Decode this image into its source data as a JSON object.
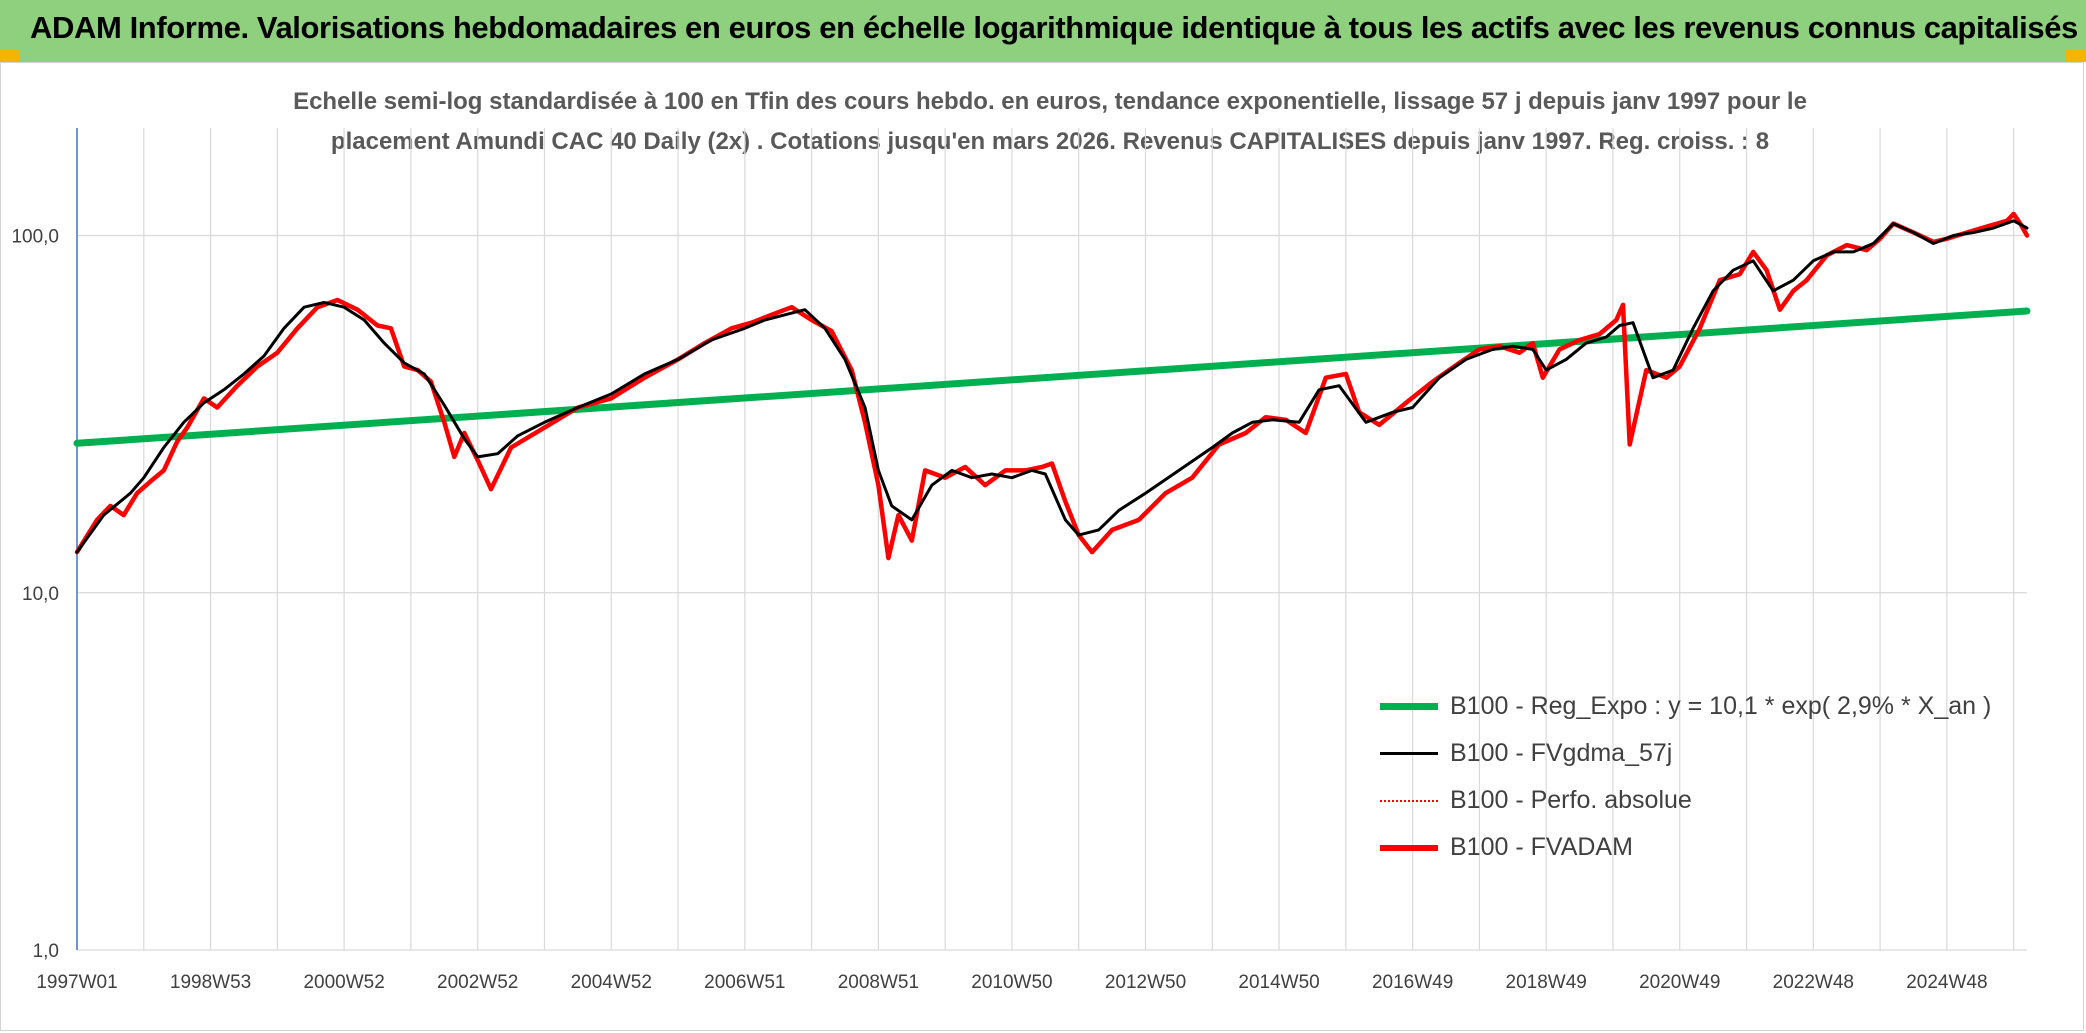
{
  "header": {
    "title": "ADAM Informe. Valorisations hebdomadaires en euros en échelle logarithmique identique à tous les actifs avec les revenus connus capitalisés"
  },
  "colors": {
    "banner": "#8fd07f",
    "regression": "#00b050",
    "moving_average": "#000000",
    "absolute_perf": "#ff0000",
    "fvadam": "#ff0000",
    "grid": "#d9d9d9",
    "accent_corner": "#f5b400"
  },
  "chart_data": {
    "type": "line",
    "title_line1": "Echelle semi-log standardisée à 100 en Tfin des cours hebdo. en euros, tendance exponentielle, lissage 57 j depuis janv 1997 pour le",
    "title_line2": "placement Amundi CAC 40 Daily (2x) . Cotations jusqu'en mars 2026. Revenus CAPITALISES depuis janv 1997. Reg. croiss. : 8",
    "y_scale": "log",
    "ylim": [
      1,
      200
    ],
    "y_ticks": [
      {
        "value": 1,
        "label": "1,0"
      },
      {
        "value": 10,
        "label": "10,0"
      },
      {
        "value": 100,
        "label": "100,0"
      }
    ],
    "x_range": [
      1997.0,
      2026.2
    ],
    "x_ticks": [
      {
        "value": 1997.0,
        "label": "1997W01"
      },
      {
        "value": 1999.0,
        "label": "1998W53"
      },
      {
        "value": 2001.0,
        "label": "2000W52"
      },
      {
        "value": 2003.0,
        "label": "2002W52"
      },
      {
        "value": 2005.0,
        "label": "2004W52"
      },
      {
        "value": 2007.0,
        "label": "2006W51"
      },
      {
        "value": 2009.0,
        "label": "2008W51"
      },
      {
        "value": 2011.0,
        "label": "2010W50"
      },
      {
        "value": 2013.0,
        "label": "2012W50"
      },
      {
        "value": 2015.0,
        "label": "2014W50"
      },
      {
        "value": 2017.0,
        "label": "2016W49"
      },
      {
        "value": 2019.0,
        "label": "2018W49"
      },
      {
        "value": 2021.0,
        "label": "2020W49"
      },
      {
        "value": 2023.0,
        "label": "2022W48"
      },
      {
        "value": 2025.0,
        "label": "2024W48"
      }
    ],
    "grid": true,
    "legend_position": "bottom-right",
    "series": [
      {
        "name": "B100 - Reg_Expo : y = 10,1 * exp( 2,9% *  X_an )",
        "key": "reg",
        "style": "thick",
        "x": [
          1997.0,
          2026.2
        ],
        "y": [
          26.2,
          61.5
        ]
      },
      {
        "name": "B100 - FVgdma_57j",
        "key": "ma",
        "style": "thin",
        "x": [
          1997.0,
          1997.4,
          1997.8,
          1998.0,
          1998.3,
          1998.6,
          1998.9,
          1999.2,
          1999.5,
          1999.8,
          2000.1,
          2000.4,
          2000.7,
          2001.0,
          2001.3,
          2001.6,
          2001.9,
          2002.2,
          2002.5,
          2002.8,
          2003.0,
          2003.3,
          2003.6,
          2004.0,
          2004.5,
          2005.0,
          2005.5,
          2006.0,
          2006.5,
          2007.0,
          2007.3,
          2007.6,
          2007.9,
          2008.2,
          2008.5,
          2008.8,
          2009.0,
          2009.2,
          2009.5,
          2009.8,
          2010.1,
          2010.4,
          2010.7,
          2011.0,
          2011.3,
          2011.5,
          2011.8,
          2012.0,
          2012.3,
          2012.6,
          2013.0,
          2013.5,
          2014.0,
          2014.3,
          2014.6,
          2014.9,
          2015.3,
          2015.6,
          2015.9,
          2016.3,
          2016.7,
          2017.0,
          2017.4,
          2017.8,
          2018.2,
          2018.5,
          2018.8,
          2019.0,
          2019.3,
          2019.6,
          2019.9,
          2020.1,
          2020.3,
          2020.6,
          2020.9,
          2021.2,
          2021.5,
          2021.8,
          2022.1,
          2022.4,
          2022.7,
          2023.0,
          2023.3,
          2023.6,
          2023.9,
          2024.2,
          2024.5,
          2024.8,
          2025.1,
          2025.4,
          2025.7,
          2026.0,
          2026.2
        ],
        "y": [
          13.0,
          16.5,
          19.0,
          21.0,
          25.5,
          30.0,
          34.0,
          37.0,
          41.0,
          46.0,
          55.0,
          63.0,
          65.0,
          63.0,
          58.0,
          50.0,
          44.0,
          41.0,
          33.5,
          27.0,
          24.0,
          24.5,
          27.5,
          30.0,
          33.0,
          36.0,
          41.0,
          45.0,
          51.0,
          55.0,
          58.0,
          60.0,
          62.0,
          55.0,
          45.0,
          33.0,
          22.0,
          17.5,
          16.0,
          20.0,
          22.0,
          21.0,
          21.5,
          21.0,
          22.0,
          21.5,
          16.0,
          14.5,
          15.0,
          17.0,
          19.0,
          22.0,
          25.5,
          28.0,
          30.0,
          30.5,
          30.0,
          37.0,
          38.0,
          30.0,
          32.0,
          33.0,
          40.0,
          45.0,
          48.0,
          49.0,
          48.0,
          42.0,
          45.0,
          50.0,
          52.0,
          56.0,
          57.0,
          40.0,
          42.0,
          55.0,
          70.0,
          80.0,
          85.0,
          70.0,
          75.0,
          85.0,
          90.0,
          90.0,
          95.0,
          108.0,
          102.0,
          95.0,
          100.0,
          102.0,
          105.0,
          110.0,
          105.0
        ]
      },
      {
        "name": "B100 - Perfo. absolue",
        "key": "abs",
        "style": "dotted",
        "x": [],
        "y": []
      },
      {
        "name": "B100 - FVADAM",
        "key": "fvadam",
        "style": "thick",
        "x": [
          1997.0,
          1997.3,
          1997.5,
          1997.7,
          1997.9,
          1998.1,
          1998.3,
          1998.5,
          1998.65,
          1998.9,
          1999.1,
          1999.4,
          1999.7,
          2000.0,
          2000.3,
          2000.6,
          2000.9,
          2001.2,
          2001.5,
          2001.7,
          2001.9,
          2002.1,
          2002.3,
          2002.5,
          2002.65,
          2002.8,
          2003.0,
          2003.2,
          2003.5,
          2004.0,
          2004.5,
          2005.0,
          2005.5,
          2006.0,
          2006.4,
          2006.8,
          2007.1,
          2007.4,
          2007.7,
          2008.0,
          2008.3,
          2008.6,
          2008.8,
          2009.0,
          2009.15,
          2009.3,
          2009.5,
          2009.7,
          2010.0,
          2010.3,
          2010.6,
          2010.9,
          2011.2,
          2011.45,
          2011.6,
          2011.8,
          2012.0,
          2012.2,
          2012.5,
          2012.9,
          2013.3,
          2013.7,
          2014.1,
          2014.5,
          2014.8,
          2015.1,
          2015.4,
          2015.7,
          2016.0,
          2016.2,
          2016.5,
          2016.9,
          2017.3,
          2017.7,
          2018.0,
          2018.3,
          2018.6,
          2018.8,
          2018.95,
          2019.2,
          2019.5,
          2019.8,
          2020.05,
          2020.15,
          2020.25,
          2020.5,
          2020.8,
          2021.0,
          2021.3,
          2021.6,
          2021.9,
          2022.1,
          2022.3,
          2022.5,
          2022.7,
          2022.9,
          2023.2,
          2023.5,
          2023.8,
          2024.0,
          2024.2,
          2024.5,
          2024.8,
          2025.0,
          2025.3,
          2025.6,
          2025.9,
          2026.0,
          2026.1,
          2026.2
        ],
        "y": [
          13.0,
          16.0,
          17.5,
          16.5,
          19.0,
          20.5,
          22.0,
          26.5,
          29.0,
          35.0,
          33.0,
          38.0,
          43.0,
          47.0,
          55.0,
          63.0,
          66.0,
          62.0,
          56.0,
          55.0,
          43.0,
          42.0,
          39.0,
          30.0,
          24.0,
          28.0,
          23.5,
          19.5,
          25.5,
          29.0,
          33.0,
          35.0,
          40.0,
          45.0,
          50.0,
          55.0,
          57.0,
          60.0,
          63.0,
          58.0,
          54.0,
          42.0,
          30.0,
          20.0,
          12.5,
          16.5,
          14.0,
          22.0,
          21.0,
          22.5,
          20.0,
          22.0,
          22.0,
          22.5,
          23.0,
          18.0,
          14.5,
          13.0,
          15.0,
          16.0,
          19.0,
          21.0,
          26.0,
          28.0,
          31.0,
          30.5,
          28.0,
          40.0,
          41.0,
          32.0,
          29.5,
          34.0,
          39.0,
          44.0,
          48.0,
          49.0,
          47.0,
          50.0,
          40.0,
          48.0,
          51.0,
          53.0,
          58.0,
          64.0,
          26.0,
          42.0,
          40.0,
          43.0,
          55.0,
          75.0,
          78.0,
          90.0,
          80.0,
          62.0,
          70.0,
          75.0,
          88.0,
          94.0,
          91.0,
          98.0,
          108.0,
          102.0,
          96.0,
          98.0,
          102.0,
          106.0,
          110.0,
          115.0,
          108.0,
          100.0
        ]
      }
    ]
  }
}
